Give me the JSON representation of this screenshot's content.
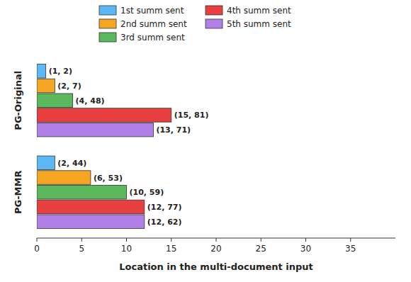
{
  "chart_data": {
    "type": "bar",
    "orientation": "horizontal",
    "categories": [
      "PG-Original",
      "PG-MMR"
    ],
    "series": [
      {
        "name": "1st summ sent",
        "color": "#5bb8f5",
        "values": [
          1,
          2
        ],
        "value_labels": [
          "(1, 2)",
          "(2, 44)"
        ]
      },
      {
        "name": "2nd summ sent",
        "color": "#f5a623",
        "values": [
          2,
          6
        ],
        "value_labels": [
          "(2, 7)",
          "(6, 53)"
        ]
      },
      {
        "name": "3rd summ sent",
        "color": "#5cb85c",
        "values": [
          4,
          10
        ],
        "value_labels": [
          "(4, 48)",
          "(10, 59)"
        ]
      },
      {
        "name": "4th summ sent",
        "color": "#e84040",
        "values": [
          15,
          12
        ],
        "value_labels": [
          "(15, 81)",
          "(12, 77)"
        ]
      },
      {
        "name": "5th summ sent",
        "color": "#b07fe8",
        "values": [
          13,
          12
        ],
        "value_labels": [
          "(13, 71)",
          "(12, 62)"
        ]
      }
    ],
    "x_label": "Location in the multi-document input",
    "xlim": [
      0,
      40
    ],
    "xticks": [
      0,
      5,
      10,
      15,
      20,
      25,
      30,
      35
    ],
    "data_labels": true,
    "legend": "top",
    "grid": false
  }
}
